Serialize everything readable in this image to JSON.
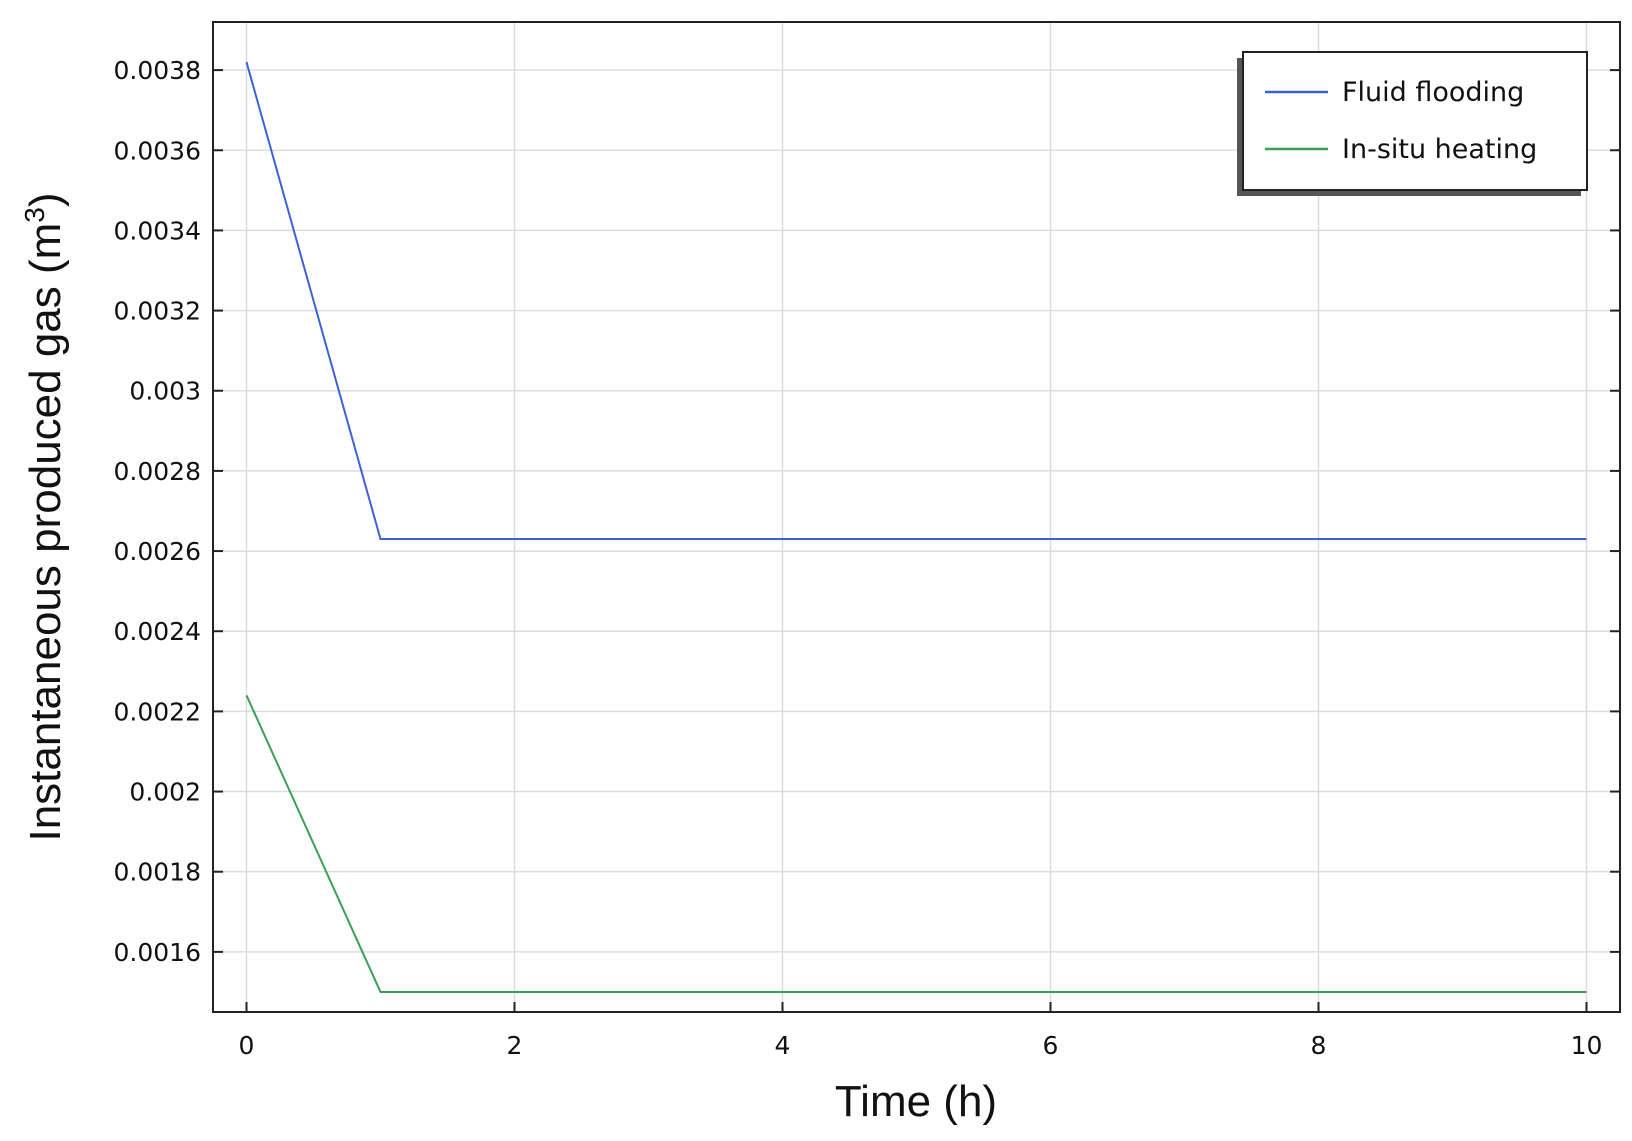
{
  "chart_data": {
    "type": "line",
    "xlabel": "Time (h)",
    "ylabel_main": "Instantaneous produced gas (m",
    "ylabel_sup": "3",
    "ylabel_end": ")",
    "xlim": [
      -0.25,
      10.25
    ],
    "ylim": [
      0.00145,
      0.00392
    ],
    "x_ticks": [
      0,
      2,
      4,
      6,
      8,
      10
    ],
    "x_tick_labels": [
      "0",
      "2",
      "4",
      "6",
      "8",
      "10"
    ],
    "y_ticks": [
      0.0016,
      0.0018,
      0.002,
      0.0022,
      0.0024,
      0.0026,
      0.0028,
      0.003,
      0.0032,
      0.0034,
      0.0036,
      0.0038
    ],
    "y_tick_labels": [
      "0.0016",
      "0.0018",
      "0.002",
      "0.0022",
      "0.0024",
      "0.0026",
      "0.0028",
      "0.003",
      "0.0032",
      "0.0034",
      "0.0036",
      "0.0038"
    ],
    "grid": true,
    "legend_position": "top-right",
    "series": [
      {
        "name": "Fluid flooding",
        "color": "#3b63d6",
        "x": [
          0,
          1,
          10
        ],
        "y": [
          0.00382,
          0.00263,
          0.00263
        ]
      },
      {
        "name": "In-situ heating",
        "color": "#3c9f55",
        "x": [
          0,
          1,
          10
        ],
        "y": [
          0.00224,
          0.0015,
          0.0015
        ]
      }
    ]
  }
}
